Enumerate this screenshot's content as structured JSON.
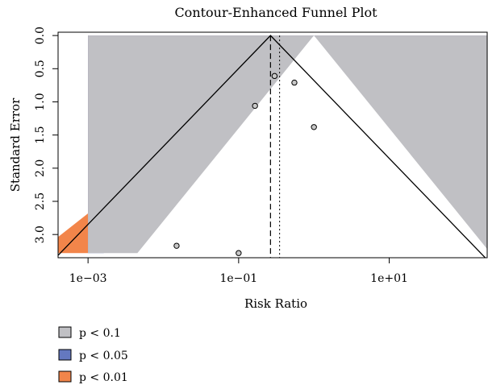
{
  "chart_data": {
    "type": "scatter",
    "title": "Contour-Enhanced Funnel Plot",
    "xlabel": "Risk Ratio",
    "ylabel": "Standard Error",
    "x_scale": "log10",
    "y_reversed": true,
    "xlim": [
      0.0004,
      200
    ],
    "ylim": [
      3.35,
      -0.05
    ],
    "xticks": [
      0.001,
      0.1,
      10
    ],
    "xtick_labels": [
      "1e−03",
      "1e−01",
      "1e+01"
    ],
    "yticks": [
      0.0,
      0.5,
      1.0,
      1.5,
      2.0,
      2.5,
      3.0
    ],
    "ytick_labels": [
      "0.0",
      "0.5",
      "1.0",
      "1.5",
      "2.0",
      "2.5",
      "3.0"
    ],
    "funnel_center": 1.0,
    "contours_se_max": 3.28,
    "contours": [
      {
        "label": "p < 0.1",
        "z": 1.645,
        "color": "#c0c0c4"
      },
      {
        "label": "p < 0.05",
        "z": 1.96,
        "color": "#6478c0"
      },
      {
        "label": "p < 0.01",
        "z": 2.576,
        "color": "#f2854a"
      }
    ],
    "points": [
      {
        "x": 0.015,
        "y": 3.17
      },
      {
        "x": 0.1,
        "y": 3.28
      },
      {
        "x": 0.165,
        "y": 1.06
      },
      {
        "x": 0.3,
        "y": 0.61
      },
      {
        "x": 0.55,
        "y": 0.71
      },
      {
        "x": 1.0,
        "y": 1.38
      }
    ],
    "pooled_estimate": 0.265,
    "reference_line": 0.35,
    "legend": [
      "p < 0.1",
      "p < 0.05",
      "p < 0.01"
    ],
    "legend_position": "bottom-left",
    "grid": false
  }
}
